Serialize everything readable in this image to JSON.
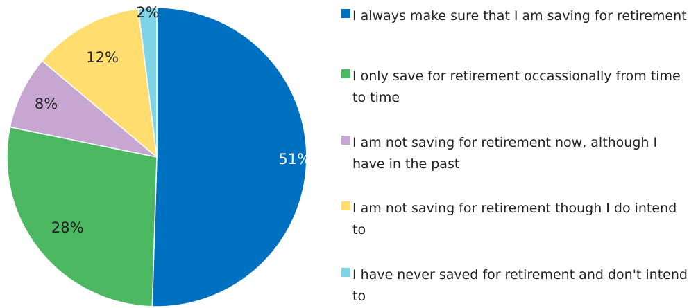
{
  "chart_data": {
    "type": "pie",
    "title": "",
    "start_angle_deg": 0,
    "direction": "clockwise",
    "legend_position": "right",
    "slices": [
      {
        "label": "I always make sure that I am saving for retirement",
        "value": 51,
        "display": "51%",
        "color": "#0070C0",
        "label_color": "#ffffff"
      },
      {
        "label": "I only save for retirement occassionally from time to time",
        "value": 28,
        "display": "28%",
        "color": "#4DB862",
        "label_color": "#222222"
      },
      {
        "label": "I am not saving for retirement now, although I have in the past",
        "value": 8,
        "display": "8%",
        "color": "#C8A6D2",
        "label_color": "#222222"
      },
      {
        "label": "I am not saving for retirement though I do intend to",
        "value": 12,
        "display": "12%",
        "color": "#FFDD6E",
        "label_color": "#222222"
      },
      {
        "label": "I have never saved for retirement and don't intend to",
        "value": 2,
        "display": "2%",
        "color": "#7FD3E6",
        "label_color": "#222222"
      }
    ]
  }
}
